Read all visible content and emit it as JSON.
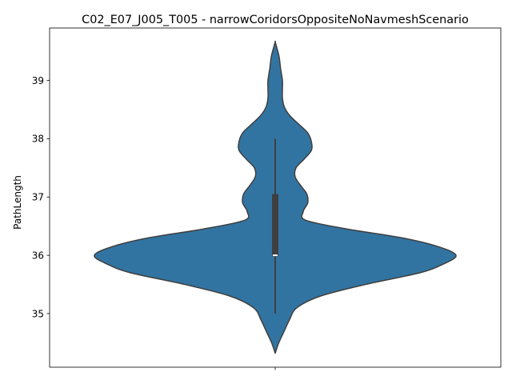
{
  "chart_data": {
    "type": "violin",
    "title": "C02_E07_J005_T005 - narrowCoridorsOppositeNoNavmeshScenario",
    "xlabel": "",
    "ylabel": "PathLength",
    "ylim": [
      34.08,
      39.9
    ],
    "yticks": [
      35,
      36,
      37,
      38,
      39
    ],
    "grid": false,
    "colors": {
      "violin_fill": "#3274a1",
      "violin_edge": "#3f3f3f",
      "box": "#3f3f3f",
      "median": "#ffffff"
    },
    "violin": {
      "profile": [
        [
          34.32,
          0.0
        ],
        [
          34.5,
          0.02
        ],
        [
          34.7,
          0.05
        ],
        [
          34.9,
          0.08
        ],
        [
          35.1,
          0.12
        ],
        [
          35.3,
          0.25
        ],
        [
          35.5,
          0.5
        ],
        [
          35.7,
          0.8
        ],
        [
          35.85,
          0.93
        ],
        [
          36.0,
          1.0
        ],
        [
          36.15,
          0.9
        ],
        [
          36.3,
          0.7
        ],
        [
          36.45,
          0.4
        ],
        [
          36.6,
          0.17
        ],
        [
          36.75,
          0.155
        ],
        [
          36.9,
          0.18
        ],
        [
          37.05,
          0.175
        ],
        [
          37.2,
          0.14
        ],
        [
          37.35,
          0.11
        ],
        [
          37.5,
          0.115
        ],
        [
          37.65,
          0.16
        ],
        [
          37.8,
          0.2
        ],
        [
          37.95,
          0.2
        ],
        [
          38.1,
          0.18
        ],
        [
          38.25,
          0.13
        ],
        [
          38.4,
          0.08
        ],
        [
          38.55,
          0.05
        ],
        [
          38.7,
          0.04
        ],
        [
          38.85,
          0.04
        ],
        [
          39.0,
          0.04
        ],
        [
          39.2,
          0.03
        ],
        [
          39.4,
          0.022
        ],
        [
          39.55,
          0.01
        ],
        [
          39.66,
          0.0
        ]
      ],
      "whisker_low": 35.0,
      "q1": 35.98,
      "median": 36.0,
      "q3": 37.05,
      "whisker_high": 38.0
    }
  }
}
